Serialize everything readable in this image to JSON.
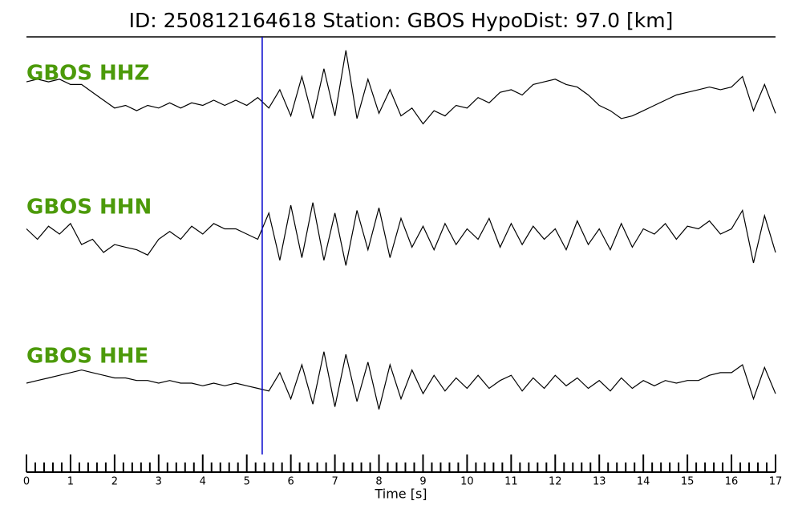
{
  "chart_data": {
    "type": "line",
    "title": "ID: 250812164618   Station: GBOS   HypoDist:    97.0 [km]",
    "xlabel": "Time [s]",
    "xlim": [
      0,
      17
    ],
    "xticks": [
      0,
      1,
      2,
      3,
      4,
      5,
      6,
      7,
      8,
      9,
      10,
      11,
      12,
      13,
      14,
      15,
      16,
      17
    ],
    "xminor_divisions": 5,
    "ylim": [
      -1.1,
      1.1
    ],
    "vlines": [
      5.35
    ],
    "vline_color": "#0000cc",
    "label_color": "#4c9a0a",
    "x": [
      0,
      0.25,
      0.5,
      0.75,
      1,
      1.25,
      1.5,
      1.75,
      2,
      2.25,
      2.5,
      2.75,
      3,
      3.25,
      3.5,
      3.75,
      4,
      4.25,
      4.5,
      4.75,
      5,
      5.25,
      5.5,
      5.75,
      6,
      6.25,
      6.5,
      6.75,
      7,
      7.25,
      7.5,
      7.75,
      8,
      8.25,
      8.5,
      8.75,
      9,
      9.25,
      9.5,
      9.75,
      10,
      10.25,
      10.5,
      10.75,
      11,
      11.25,
      11.5,
      11.75,
      12,
      12.25,
      12.5,
      12.75,
      13,
      13.25,
      13.5,
      13.75,
      14,
      14.25,
      14.5,
      14.75,
      15,
      15.25,
      15.5,
      15.75,
      16,
      16.25,
      16.5,
      16.75,
      17
    ],
    "series": [
      {
        "name": "GBOS HHZ",
        "color": "#000000",
        "values": [
          0.35,
          0.4,
          0.35,
          0.4,
          0.3,
          0.3,
          0.15,
          0.0,
          -0.15,
          -0.1,
          -0.2,
          -0.1,
          -0.15,
          -0.05,
          -0.15,
          -0.05,
          -0.1,
          0.0,
          -0.1,
          0.0,
          -0.1,
          0.05,
          -0.15,
          0.2,
          -0.3,
          0.45,
          -0.35,
          0.6,
          -0.3,
          0.95,
          -0.35,
          0.4,
          -0.25,
          0.2,
          -0.3,
          -0.15,
          -0.45,
          -0.2,
          -0.3,
          -0.1,
          -0.15,
          0.05,
          -0.05,
          0.15,
          0.2,
          0.1,
          0.3,
          0.35,
          0.4,
          0.3,
          0.25,
          0.1,
          -0.1,
          -0.2,
          -0.35,
          -0.3,
          -0.2,
          -0.1,
          0.0,
          0.1,
          0.15,
          0.2,
          0.25,
          0.2,
          0.25,
          0.45,
          -0.2,
          0.3,
          -0.25
        ]
      },
      {
        "name": "GBOS HHN",
        "color": "#000000",
        "values": [
          0.1,
          -0.1,
          0.15,
          0.0,
          0.2,
          -0.2,
          -0.1,
          -0.35,
          -0.2,
          -0.25,
          -0.3,
          -0.4,
          -0.1,
          0.05,
          -0.1,
          0.15,
          0.0,
          0.2,
          0.1,
          0.1,
          0.0,
          -0.1,
          0.4,
          -0.5,
          0.55,
          -0.45,
          0.6,
          -0.5,
          0.4,
          -0.6,
          0.45,
          -0.3,
          0.5,
          -0.45,
          0.3,
          -0.25,
          0.15,
          -0.3,
          0.2,
          -0.2,
          0.1,
          -0.1,
          0.3,
          -0.25,
          0.2,
          -0.2,
          0.15,
          -0.1,
          0.1,
          -0.3,
          0.25,
          -0.2,
          0.1,
          -0.3,
          0.2,
          -0.25,
          0.1,
          0.0,
          0.2,
          -0.1,
          0.15,
          0.1,
          0.25,
          0.0,
          0.1,
          0.45,
          -0.55,
          0.35,
          -0.35
        ]
      },
      {
        "name": "GBOS HHE",
        "color": "#000000",
        "values": [
          0.0,
          0.05,
          0.1,
          0.15,
          0.2,
          0.25,
          0.2,
          0.15,
          0.1,
          0.1,
          0.05,
          0.05,
          0.0,
          0.05,
          0.0,
          0.0,
          -0.05,
          0.0,
          -0.05,
          0.0,
          -0.05,
          -0.1,
          -0.15,
          0.2,
          -0.3,
          0.35,
          -0.4,
          0.6,
          -0.45,
          0.55,
          -0.35,
          0.4,
          -0.5,
          0.35,
          -0.3,
          0.25,
          -0.2,
          0.15,
          -0.15,
          0.1,
          -0.1,
          0.15,
          -0.1,
          0.05,
          0.15,
          -0.15,
          0.1,
          -0.1,
          0.15,
          -0.05,
          0.1,
          -0.1,
          0.05,
          -0.15,
          0.1,
          -0.1,
          0.05,
          -0.05,
          0.05,
          0.0,
          0.05,
          0.05,
          0.15,
          0.2,
          0.2,
          0.35,
          -0.3,
          0.3,
          -0.2
        ]
      }
    ]
  }
}
